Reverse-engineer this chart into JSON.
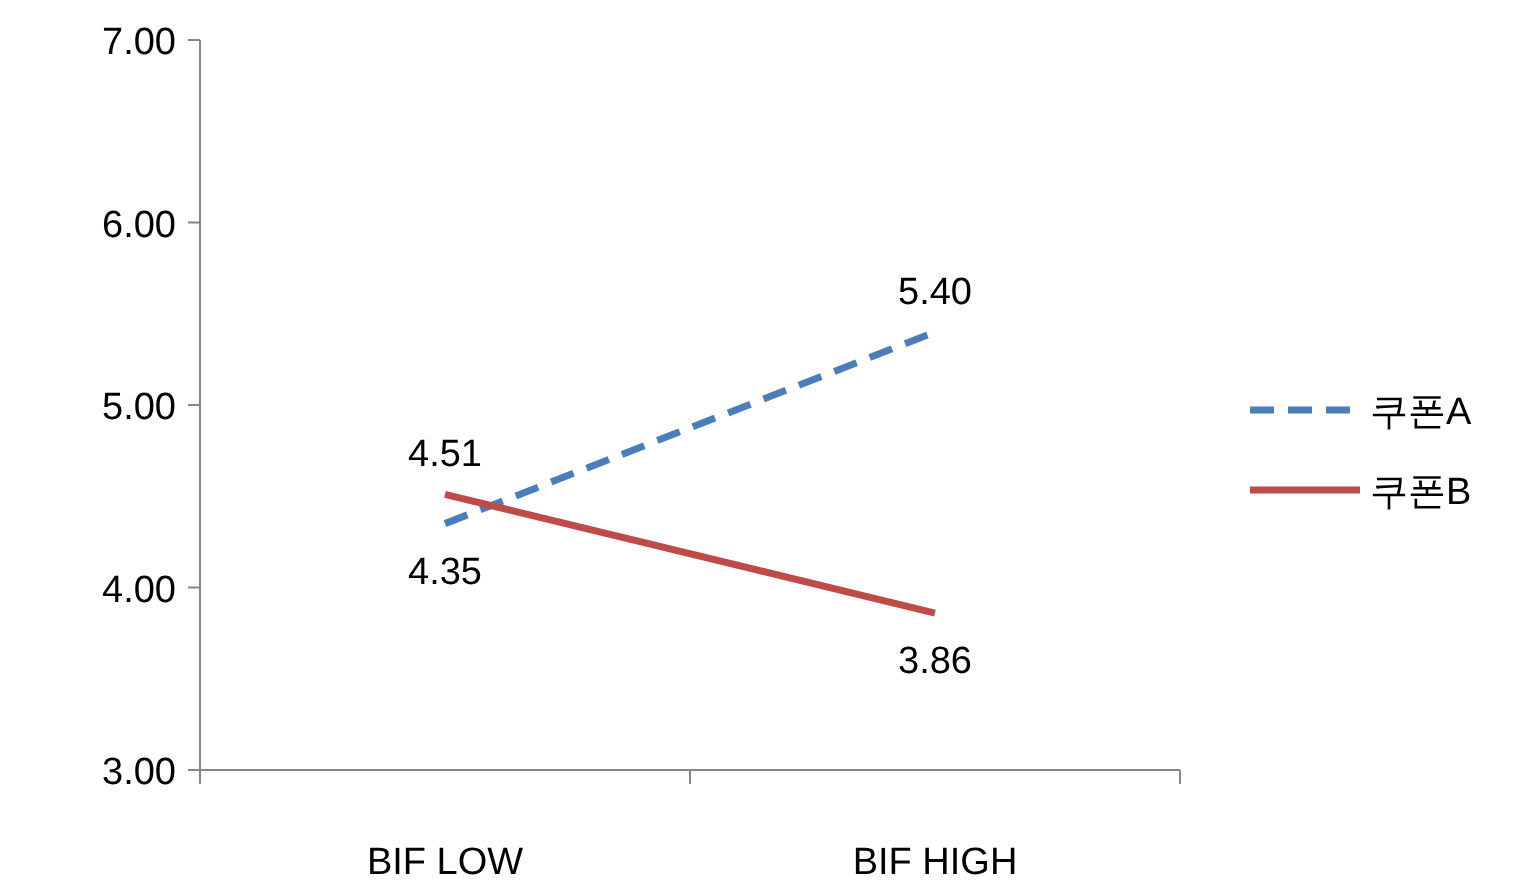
{
  "chart_data": {
    "type": "line",
    "categories": [
      "BIF LOW",
      "BIF HIGH"
    ],
    "series": [
      {
        "name": "쿠폰A",
        "color": "#4a7ebb",
        "line_style": "dashed",
        "values": [
          4.35,
          5.4
        ],
        "value_labels": [
          "4.35",
          "5.40"
        ]
      },
      {
        "name": "쿠폰B",
        "color": "#be4b48",
        "line_style": "solid",
        "values": [
          4.51,
          3.86
        ],
        "value_labels": [
          "4.51",
          "3.86"
        ]
      }
    ],
    "ylim": [
      3,
      7
    ],
    "yticks": [
      {
        "value": 3,
        "label": "3.00"
      },
      {
        "value": 4,
        "label": "4.00"
      },
      {
        "value": 5,
        "label": "5.00"
      },
      {
        "value": 6,
        "label": "6.00"
      },
      {
        "value": 7,
        "label": "7.00"
      }
    ],
    "grid": false,
    "legend": "right",
    "marker": "none"
  }
}
